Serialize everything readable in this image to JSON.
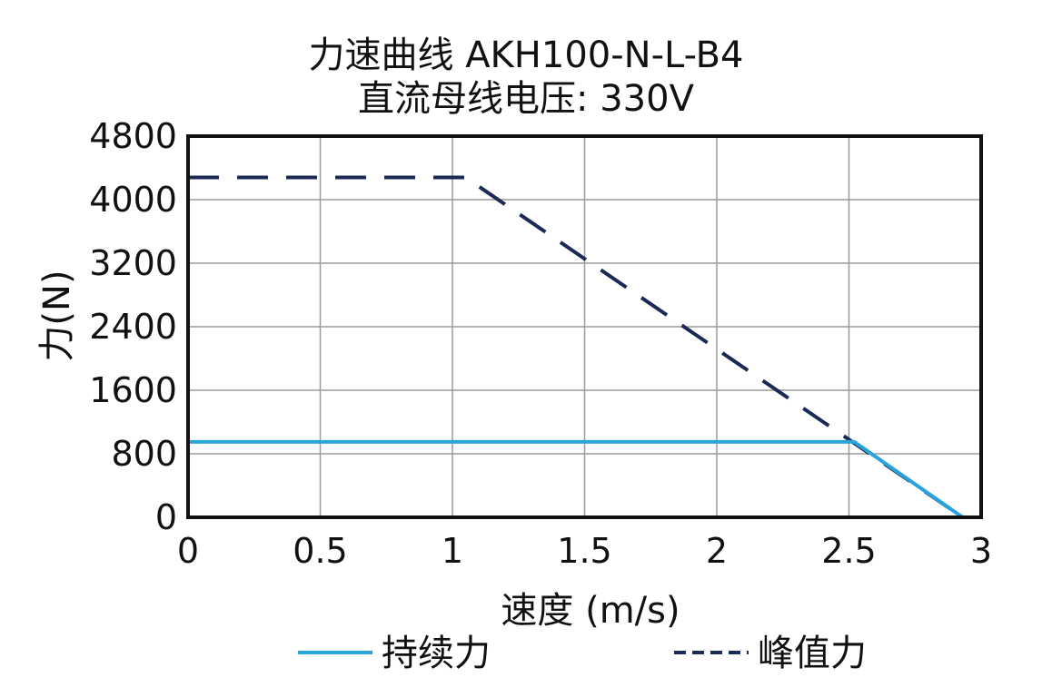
{
  "chart_data": {
    "type": "line",
    "title": "力速曲线 AKH100-N-L-B4",
    "subtitle": "直流母线电压: 330V",
    "xlabel": "速度 (m/s)",
    "ylabel": "力(N)",
    "xlim": [
      0,
      3
    ],
    "ylim": [
      0,
      4800
    ],
    "xticks": [
      "0",
      "0.5",
      "1",
      "1.5",
      "2",
      "2.5",
      "3"
    ],
    "xtick_values": [
      0,
      0.5,
      1,
      1.5,
      2,
      2.5,
      3
    ],
    "yticks": [
      "0",
      "800",
      "1600",
      "2400",
      "3200",
      "4000",
      "4800"
    ],
    "ytick_values": [
      0,
      800,
      1600,
      2400,
      3200,
      4000,
      4800
    ],
    "grid": true,
    "legend_position": "bottom",
    "series": [
      {
        "name": "持续力",
        "style": "solid",
        "color": "#29a3dc",
        "points": [
          [
            0,
            950
          ],
          [
            2.52,
            950
          ],
          [
            2.93,
            0
          ]
        ]
      },
      {
        "name": "峰值力",
        "style": "dashed",
        "color": "#1a2a55",
        "points": [
          [
            0,
            4280
          ],
          [
            1.05,
            4280
          ],
          [
            2.93,
            0
          ]
        ]
      }
    ]
  }
}
